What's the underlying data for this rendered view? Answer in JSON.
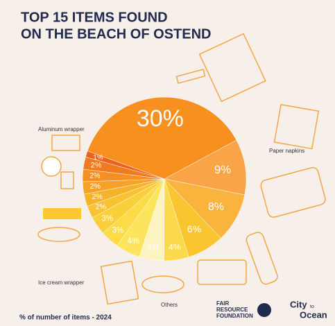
{
  "chart_data": {
    "type": "pie",
    "title_lines": [
      "TOP 15 ITEMS FOUND",
      "ON THE BEACH OF OSTEND"
    ],
    "values": [
      30,
      9,
      8,
      6,
      4,
      4,
      4,
      3,
      3,
      2,
      2,
      2,
      2,
      2,
      1
    ],
    "value_labels": [
      "30%",
      "9%",
      "8%",
      "6%",
      "4%",
      "4%",
      "4%",
      "3%",
      "3%",
      "2%",
      "2%",
      "2%",
      "2%",
      "2%",
      "1%"
    ],
    "colors": [
      "#f7901e",
      "#f9a446",
      "#fab33c",
      "#fbc530",
      "#fcd94a",
      "#fdf3c0",
      "#fce45c",
      "#fbdc48",
      "#fad03a",
      "#f8c232",
      "#f7b22c",
      "#f6a128",
      "#f58f24",
      "#f27b20",
      "#ec641c"
    ],
    "annotations": [
      "Aluminum wrapper",
      "Paper napkins",
      "Ice cream wrapper",
      "Others"
    ],
    "footnote": "% of number of items - 2024",
    "logos": [
      "FAIR",
      "RESOURCE",
      "FOUNDATION",
      "City",
      "to",
      "Ocean"
    ]
  }
}
